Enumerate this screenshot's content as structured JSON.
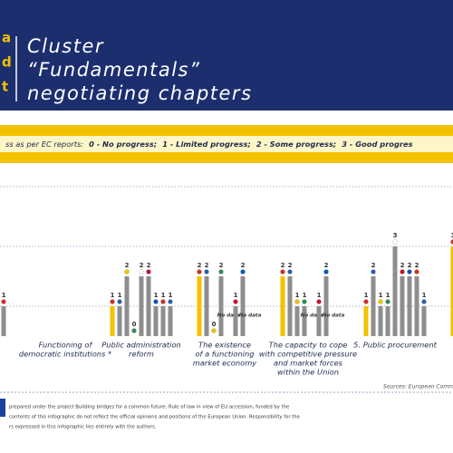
{
  "chart_data": {
    "type": "grouped-bar",
    "side_letters": [
      "a",
      "d",
      "t"
    ],
    "title_lines": [
      "Cluster",
      "“Fundamentals”",
      "negotiating chapters"
    ],
    "legend_prefix": "ss as per EC reports:",
    "legend_items": [
      "0 - No progress;",
      "1 - Limited progress;",
      "2 - Some progress;",
      "3 - Good progres"
    ],
    "no_data_label": "No data",
    "ylim": [
      0,
      5
    ],
    "yticks": [
      1,
      3,
      5
    ],
    "grid": true,
    "colors": [
      "#f2c200",
      "#8e8e8e"
    ],
    "groups": [
      {
        "label": null,
        "values": [
          1
        ]
      },
      {
        "label": [
          "Functioning of",
          "democratic institutions *"
        ],
        "values": []
      },
      {
        "label": [
          "Public administration",
          "reform"
        ],
        "values": [
          1,
          1,
          2,
          0,
          2,
          2,
          1,
          1,
          1
        ]
      },
      {
        "label": [
          "The existence",
          "of a functioning",
          "market economy"
        ],
        "values": [
          2,
          2,
          0,
          2,
          null,
          1,
          2,
          null
        ]
      },
      {
        "label": [
          "The capacity to cope",
          "with competitive pressure",
          "and market forces",
          "within the Union"
        ],
        "values": [
          2,
          2,
          1,
          1,
          null,
          1,
          2,
          null
        ]
      },
      {
        "label": [
          "5. Public procurement"
        ],
        "values": [
          1,
          2,
          1,
          1,
          3,
          2,
          2,
          2,
          1
        ]
      },
      {
        "label": null,
        "values": [
          3
        ]
      }
    ],
    "source": "Sources: European Commi",
    "footer_lines": [
      "prepared under the project Building bridges for a common future: Rule of law in view of EU accession, funded by the",
      "contents of this infographic do not reflect the official opinions and positions of the European Union. Responsibility for the",
      "rs expressed in this infographic lies entirely with the authors."
    ]
  }
}
